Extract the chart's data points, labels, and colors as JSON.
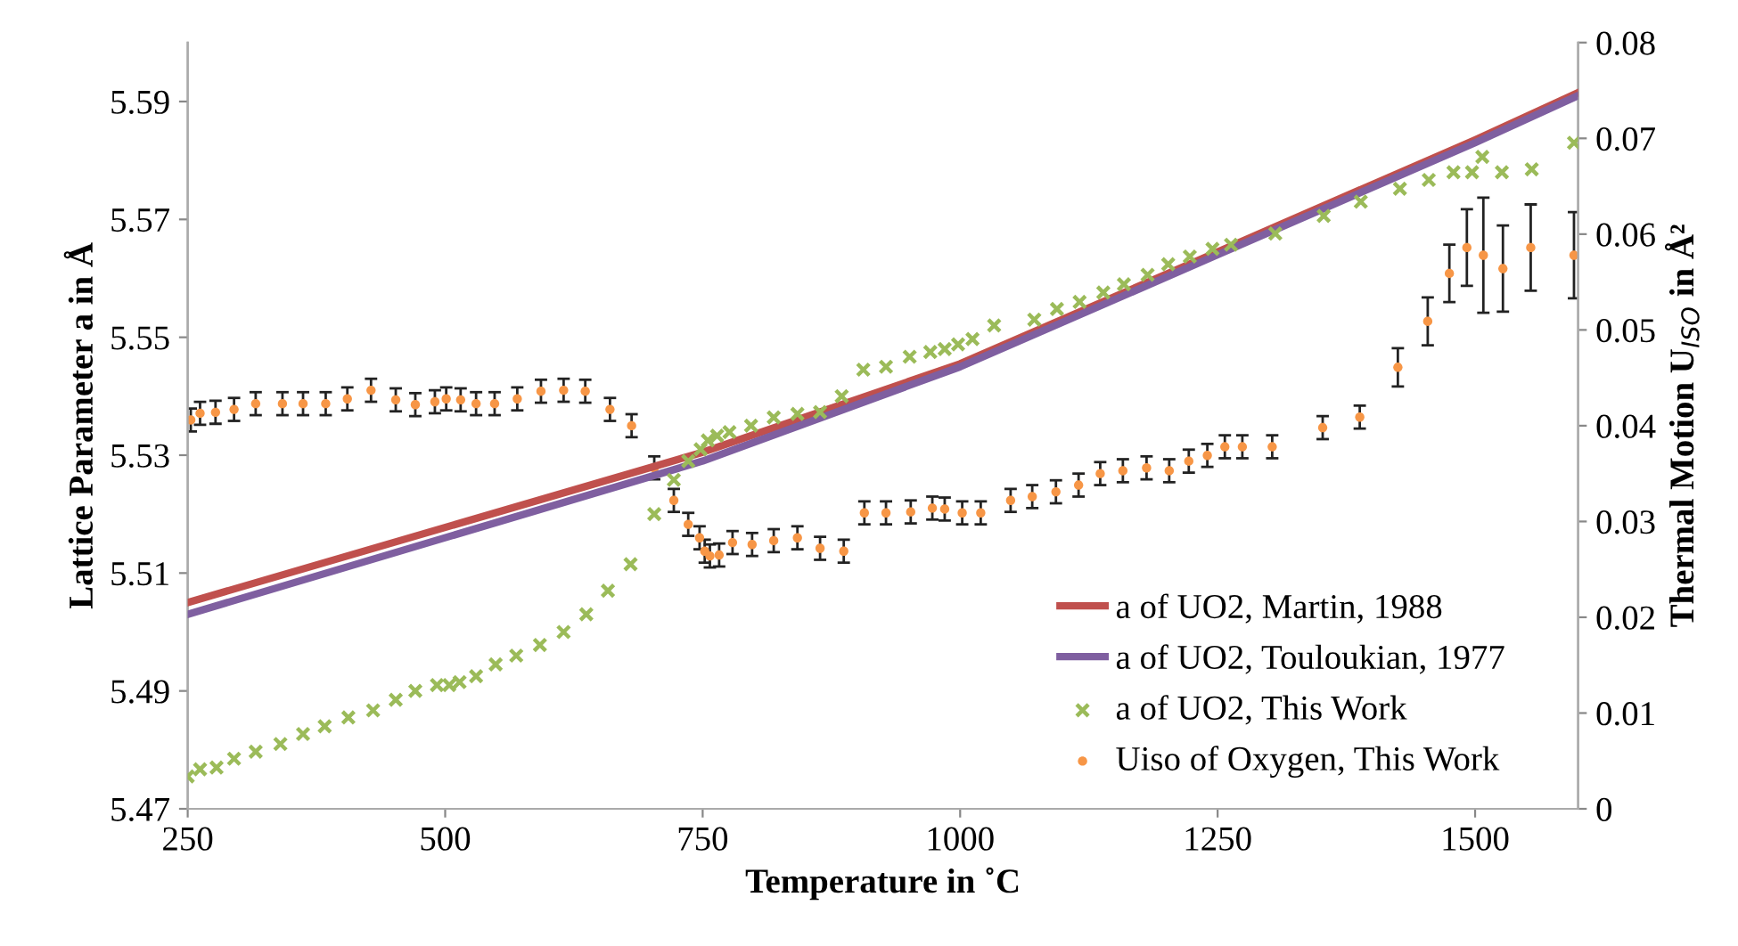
{
  "chart_data": {
    "type": "scatter",
    "xlabel": "Temperature in ˚C",
    "ylabel": "Lattice Parameter a in Å",
    "y2label": "Thermal Motion U$_{ISO}$ in Å²",
    "xlim": [
      250,
      1600
    ],
    "xticks": [
      250,
      500,
      750,
      1000,
      1250,
      1500
    ],
    "ylim": [
      5.47,
      5.6
    ],
    "yticks": [
      5.47,
      5.49,
      5.51,
      5.53,
      5.55,
      5.57,
      5.59
    ],
    "y2lim": [
      0,
      0.08
    ],
    "y2ticks": [
      0,
      0.01,
      0.02,
      0.03,
      0.04,
      0.05,
      0.06,
      0.07,
      0.08
    ],
    "grid": false,
    "legend": "bottom right",
    "series": [
      {
        "name": "a of UO2, Martin, 1988",
        "type": "line",
        "color": "#c0504d",
        "marker": "none",
        "x": [
          250,
          750,
          1000,
          1250,
          1500,
          1600
        ],
        "values": [
          5.505,
          5.5305,
          5.5455,
          5.5645,
          5.5835,
          5.5915
        ]
      },
      {
        "name": "a of UO2, Touloukian, 1977",
        "type": "line",
        "color": "#7f5fa0",
        "marker": "none",
        "x": [
          250,
          750,
          1000,
          1250,
          1500,
          1600
        ],
        "values": [
          5.503,
          5.529,
          5.545,
          5.564,
          5.583,
          5.591
        ]
      },
      {
        "name": "a of UO2, This Work",
        "color": "#9bbb59",
        "marker": "cross",
        "x": [
          250,
          262,
          278,
          295,
          316,
          340,
          362,
          383,
          406,
          430,
          452,
          471,
          492,
          504,
          514,
          530,
          549,
          569,
          592,
          615,
          637,
          658,
          680,
          703,
          722,
          736,
          748,
          755,
          764,
          776,
          797,
          819,
          842,
          864,
          885,
          906,
          928,
          951,
          971,
          985,
          998,
          1012,
          1033,
          1072,
          1094,
          1116,
          1139,
          1159,
          1182,
          1202,
          1223,
          1245,
          1263,
          1306,
          1353,
          1389,
          1427,
          1455,
          1479,
          1497,
          1507,
          1526,
          1555,
          1596
        ],
        "values": [
          5.4755,
          5.4767,
          5.477,
          5.4785,
          5.4797,
          5.481,
          5.4827,
          5.484,
          5.4855,
          5.4867,
          5.4885,
          5.49,
          5.491,
          5.491,
          5.4915,
          5.4925,
          5.4945,
          5.496,
          5.4978,
          5.5,
          5.503,
          5.507,
          5.5115,
          5.52,
          5.5258,
          5.529,
          5.531,
          5.5325,
          5.5333,
          5.5339,
          5.535,
          5.5364,
          5.537,
          5.5373,
          5.54,
          5.5445,
          5.545,
          5.5467,
          5.5475,
          5.548,
          5.5488,
          5.5497,
          5.552,
          5.553,
          5.5548,
          5.556,
          5.5576,
          5.559,
          5.5606,
          5.5624,
          5.5637,
          5.565,
          5.5657,
          5.5676,
          5.5706,
          5.573,
          5.5752,
          5.5767,
          5.578,
          5.578,
          5.5806,
          5.578,
          5.5785,
          5.583
        ]
      },
      {
        "name": "Uiso of Oxygen, This Work",
        "axis": "y2",
        "color": "#f79646",
        "marker": "circle",
        "x": [
          253,
          262,
          277,
          295,
          316,
          342,
          362,
          384,
          405,
          428,
          452,
          471,
          490,
          501,
          515,
          530,
          548,
          570,
          593,
          615,
          636,
          660,
          681,
          703,
          722,
          736,
          747,
          752,
          757,
          766,
          779,
          798,
          819,
          842,
          864,
          887,
          907,
          928,
          952,
          973,
          985,
          1002,
          1020,
          1049,
          1070,
          1093,
          1115,
          1136,
          1158,
          1181,
          1203,
          1222,
          1240,
          1257,
          1274,
          1303,
          1352,
          1388,
          1425,
          1454,
          1475,
          1492,
          1508,
          1527,
          1554,
          1596
        ],
        "values": [
          0.0406,
          0.0413,
          0.0414,
          0.0417,
          0.0423,
          0.0423,
          0.0423,
          0.0423,
          0.0428,
          0.0437,
          0.0427,
          0.0422,
          0.0425,
          0.0428,
          0.0427,
          0.0423,
          0.0423,
          0.0428,
          0.0436,
          0.0437,
          0.0436,
          0.0417,
          0.04,
          0.0356,
          0.0322,
          0.0297,
          0.0283,
          0.0269,
          0.0264,
          0.0265,
          0.0278,
          0.0276,
          0.028,
          0.0283,
          0.0272,
          0.0269,
          0.0309,
          0.0309,
          0.031,
          0.0314,
          0.0313,
          0.0309,
          0.0309,
          0.0322,
          0.0326,
          0.0331,
          0.0338,
          0.035,
          0.0353,
          0.0356,
          0.0353,
          0.0363,
          0.0369,
          0.0378,
          0.0378,
          0.0378,
          0.0398,
          0.0409,
          0.0461,
          0.0509,
          0.0559,
          0.0586,
          0.0578,
          0.0564,
          0.0586,
          0.0578
        ],
        "errors": [
          0.0012,
          0.0012,
          0.0012,
          0.0012,
          0.0012,
          0.0012,
          0.0012,
          0.0012,
          0.0012,
          0.0012,
          0.0012,
          0.0012,
          0.0012,
          0.0012,
          0.0012,
          0.0012,
          0.0012,
          0.0012,
          0.0012,
          0.0012,
          0.0012,
          0.0012,
          0.0012,
          0.0012,
          0.0012,
          0.0012,
          0.0012,
          0.0012,
          0.0012,
          0.0012,
          0.0012,
          0.0012,
          0.0012,
          0.0012,
          0.0012,
          0.0012,
          0.0012,
          0.0012,
          0.0012,
          0.0012,
          0.0012,
          0.0012,
          0.0012,
          0.0012,
          0.0012,
          0.0012,
          0.0012,
          0.0012,
          0.0012,
          0.0012,
          0.0012,
          0.0012,
          0.0012,
          0.0012,
          0.0012,
          0.0012,
          0.0012,
          0.0012,
          0.002,
          0.0025,
          0.003,
          0.004,
          0.006,
          0.0045,
          0.0045,
          0.0045
        ]
      }
    ]
  }
}
